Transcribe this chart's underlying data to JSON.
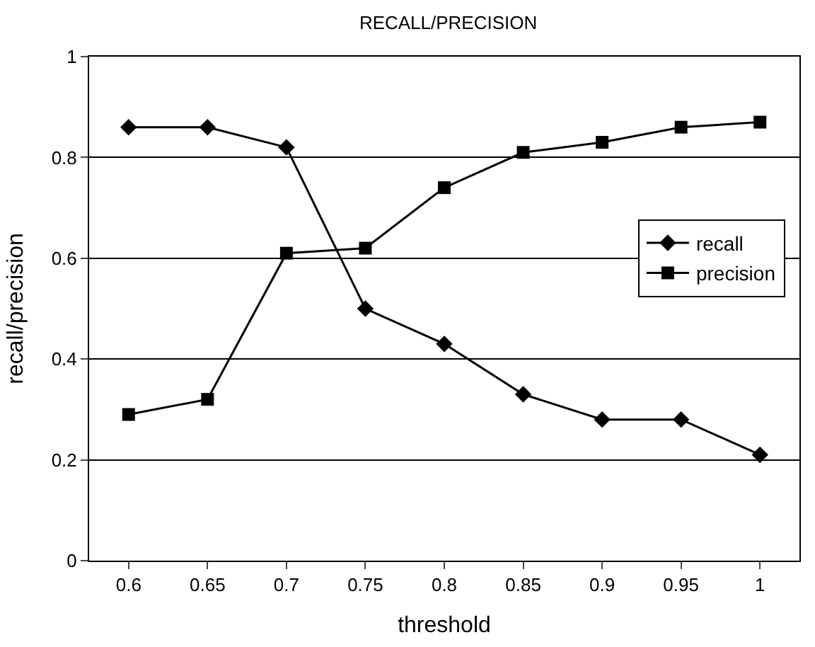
{
  "chart_data": {
    "type": "line",
    "title": "RECALL/PRECISION",
    "xlabel": "threshold",
    "ylabel": "recall/precision",
    "categories": [
      "0.6",
      "0.65",
      "0.7",
      "0.75",
      "0.8",
      "0.85",
      "0.9",
      "0.95",
      "1"
    ],
    "series": [
      {
        "name": "recall",
        "color": "#000000",
        "marker": "diamond",
        "values": [
          0.86,
          0.86,
          0.82,
          0.5,
          0.43,
          0.33,
          0.28,
          0.28,
          0.21
        ]
      },
      {
        "name": "precision",
        "color": "#000000",
        "marker": "square",
        "values": [
          0.29,
          0.32,
          0.61,
          0.62,
          0.74,
          0.81,
          0.83,
          0.86,
          0.87
        ]
      }
    ],
    "ylim": [
      0,
      1
    ],
    "yticks": [
      0,
      0.2,
      0.4,
      0.6,
      0.8,
      1
    ],
    "grid": "y",
    "legend": "right",
    "line_style": "solid"
  }
}
